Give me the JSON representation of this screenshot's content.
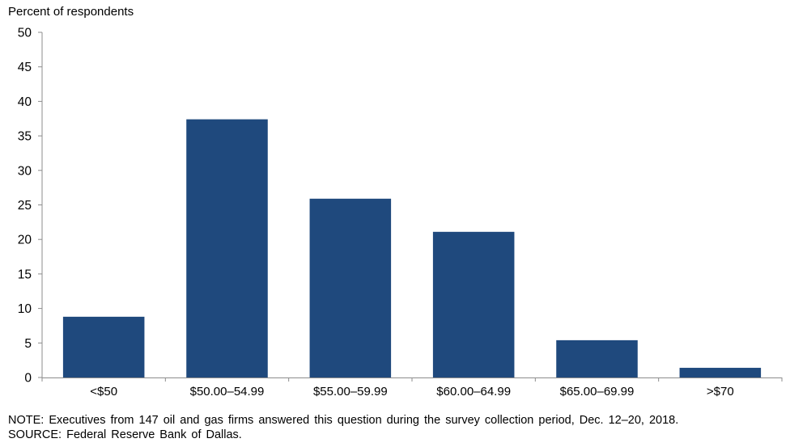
{
  "chart_data": {
    "type": "bar",
    "ylabel": "Percent of respondents",
    "categories": [
      "<$50",
      "$50.00–54.99",
      "$55.00–59.99",
      "$60.00–64.99",
      "$65.00–69.99",
      ">$70"
    ],
    "values": [
      8.8,
      37.4,
      25.9,
      21.1,
      5.4,
      1.4
    ],
    "ylim": [
      0,
      50
    ],
    "yticks": [
      0,
      5,
      10,
      15,
      20,
      25,
      30,
      35,
      40,
      45,
      50
    ],
    "bar_color": "#1f497d",
    "grid": false,
    "legend": "none"
  },
  "notes": {
    "note": "NOTE: Executives from 147 oil and gas firms answered this question during the survey collection period, Dec. 12–20, 2018.",
    "source": "SOURCE: Federal Reserve Bank of Dallas."
  }
}
